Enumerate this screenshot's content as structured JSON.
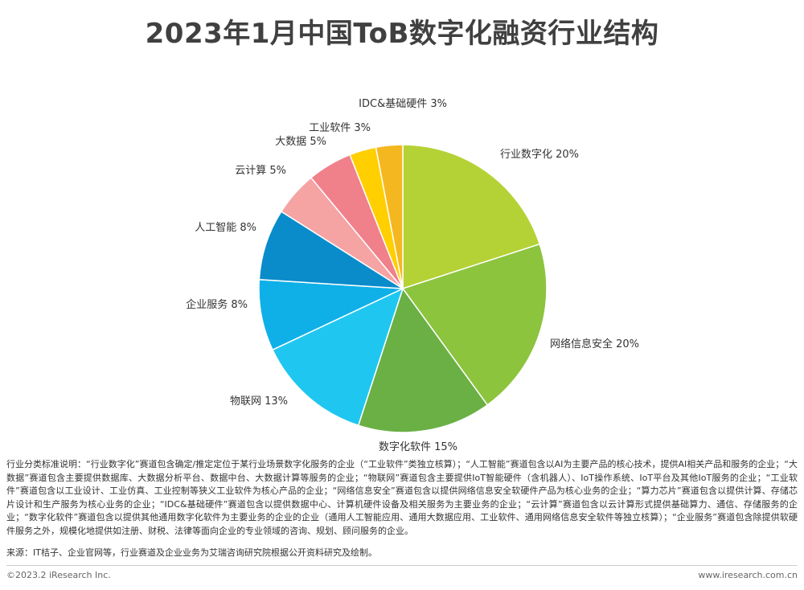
{
  "chart_data": {
    "type": "pie",
    "title": "2023年1月中国ToB数字化融资行业结构",
    "slices": [
      {
        "label": "行业数字化",
        "value": 20,
        "display": "20%",
        "color": "#b4d236"
      },
      {
        "label": "网络信息安全",
        "value": 20,
        "display": "20%",
        "color": "#8cc43e"
      },
      {
        "label": "数字化软件",
        "value": 15,
        "display": "15%",
        "color": "#6ab044"
      },
      {
        "label": "物联网",
        "value": 13,
        "display": "13%",
        "color": "#1fc7f0"
      },
      {
        "label": "企业服务",
        "value": 8,
        "display": "8%",
        "color": "#0fb0e8"
      },
      {
        "label": "人工智能",
        "value": 8,
        "display": "8%",
        "color": "#0a8ccb"
      },
      {
        "label": "云计算",
        "value": 5,
        "display": "5%",
        "color": "#f5a3a3"
      },
      {
        "label": "大数据",
        "value": 5,
        "display": "5%",
        "color": "#f0808a"
      },
      {
        "label": "工业软件",
        "value": 3,
        "display": "3%",
        "color": "#ffcf00"
      },
      {
        "label": "IDC&基础硬件",
        "value": 3,
        "display": "3%",
        "color": "#f5b720"
      }
    ]
  },
  "notes": {
    "classification": "行业分类标准说明：“行业数字化”赛道包含确定/推定定位于某行业场景数字化服务的企业（“工业软件”类独立核算）；“人工智能”赛道包含以AI为主要产品的核心技术，提供AI相关产品和服务的企业；“大数据”赛道包含主要提供数据库、大数据分析平台、数据中台、大数据计算等服务的企业；“物联网”赛道包含主要提供IoT智能硬件（含机器人）、IoT操作系统、IoT平台及其他IoT服务的企业；“工业软件”赛道包含以工业设计、工业仿真、工业控制等狭义工业软件为核心产品的企业；“网络信息安全”赛道包含以提供网络信息安全软硬件产品为核心业务的企业；“算力芯片”赛道包含以提供计算、存储芯片设计和生产服务为核心业务的企业；“IDC&基础硬件”赛道包含以提供数据中心、计算机硬件设备及相关服务为主要业务的企业；“云计算”赛道包含以云计算形式提供基础算力、通信、存储服务的企业；“数字化软件”赛道包含以提供其他通用数字化软件为主要业务的企业的企业（通用人工智能应用、通用大数据应用、工业软件、通用网络信息安全软件等独立核算）；“企业服务”赛道包含除提供软硬件服务之外，规模化地提供如注册、财税、法律等面向企业的专业领域的咨询、规划、顾问服务的企业。",
    "source": "来源：IT桔子、企业官网等，行业赛道及企业业务为艾瑞咨询研究院根据公开资料研究及绘制。"
  },
  "footer": {
    "copyright": "©2023.2 iResearch Inc.",
    "website": "www.iresearch.com.cn"
  }
}
